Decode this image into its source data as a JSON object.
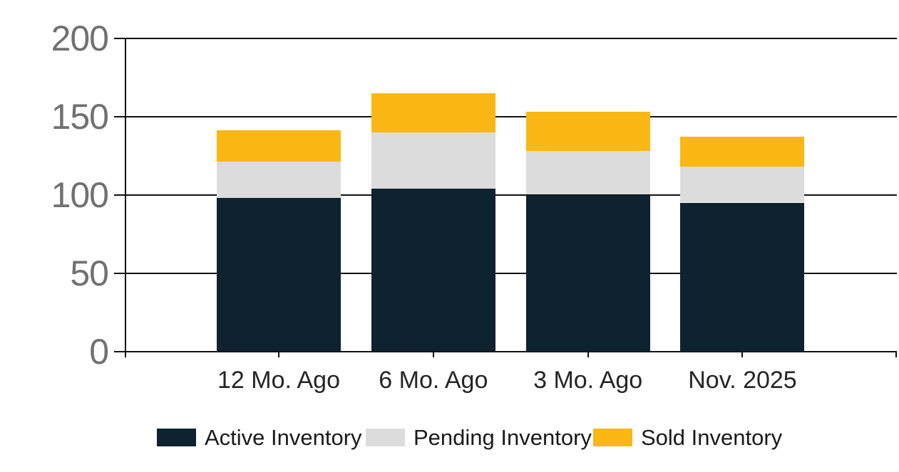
{
  "chart_data": {
    "type": "bar",
    "stacked": true,
    "categories": [
      "12 Mo. Ago",
      "6 Mo. Ago",
      "3 Mo. Ago",
      "Nov. 2025"
    ],
    "series": [
      {
        "name": "Active Inventory",
        "color": "#0E2230",
        "values": [
          98,
          104,
          100,
          95
        ]
      },
      {
        "name": "Pending Inventory",
        "color": "#DCDCDC",
        "values": [
          23,
          36,
          28,
          23
        ]
      },
      {
        "name": "Sold Inventory",
        "color": "#FBB713",
        "values": [
          20,
          25,
          25,
          19
        ]
      }
    ],
    "totals": [
      141,
      165,
      153,
      137
    ],
    "ylim": [
      0,
      200
    ],
    "yticks": [
      0,
      50,
      100,
      150,
      200
    ],
    "ytick_labels": [
      "0",
      "50",
      "100",
      "150",
      "200"
    ],
    "xlabel": "",
    "ylabel": "",
    "title": "",
    "grid": true,
    "legend_position": "bottom",
    "legend_entries": [
      "Active Inventory",
      "Pending Inventory",
      "Sold Inventory"
    ]
  },
  "colors": {
    "background": "#FFFFFF",
    "axis_line": "#111111",
    "y_tick_label": "#717171",
    "x_tick_label": "#252525",
    "legend_text": "#1A1A1A"
  }
}
